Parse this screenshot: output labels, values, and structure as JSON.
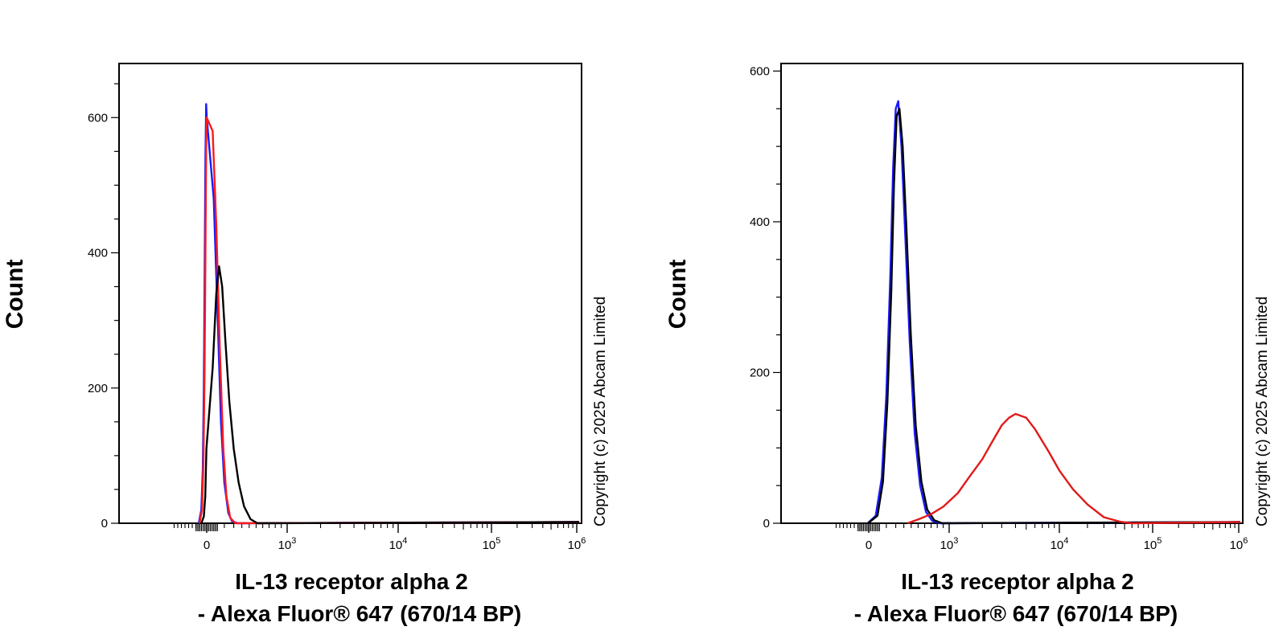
{
  "chart_data": [
    {
      "type": "histogram",
      "xlabel_line1": "IL-13 receptor alpha 2",
      "xlabel_line2": "- Alexa Fluor® 647 (670/14 BP)",
      "ylabel": "Count",
      "copyright": "Copyright (c) 2025 Abcam Limited",
      "x_scale": "biexponential",
      "x_tick_labels": [
        "0",
        "10",
        "10",
        "10",
        "10"
      ],
      "x_tick_exponents": [
        "",
        "3",
        "4",
        "5",
        "6"
      ],
      "x_ticks": [
        0,
        1000,
        10000,
        100000,
        1000000
      ],
      "ylim": [
        0,
        680
      ],
      "y_ticks": [
        0,
        200,
        400,
        600
      ],
      "series": [
        {
          "color": "#1a1aff",
          "x": [
            -220,
            -150,
            -110,
            -80,
            -55,
            -35,
            -15,
            0,
            20,
            45,
            70,
            100,
            140,
            180,
            250
          ],
          "values": [
            0,
            20,
            80,
            200,
            380,
            540,
            620,
            600,
            480,
            300,
            150,
            60,
            15,
            3,
            0
          ]
        },
        {
          "color": "#ff1a1a",
          "x": [
            -200,
            -130,
            -90,
            -60,
            -35,
            -15,
            0,
            15,
            35,
            60,
            90,
            120,
            160,
            220
          ],
          "values": [
            0,
            20,
            90,
            220,
            400,
            560,
            600,
            580,
            440,
            260,
            110,
            40,
            8,
            0
          ]
        },
        {
          "color": "#000000",
          "x": [
            -150,
            -80,
            -40,
            -10,
            15,
            35,
            55,
            80,
            110,
            150,
            200,
            260,
            330,
            420,
            520
          ],
          "values": [
            0,
            10,
            40,
            110,
            230,
            340,
            380,
            350,
            270,
            180,
            110,
            60,
            25,
            6,
            0
          ]
        }
      ]
    },
    {
      "type": "histogram",
      "xlabel_line1": "IL-13 receptor alpha 2",
      "xlabel_line2": "- Alexa Fluor® 647 (670/14 BP)",
      "ylabel": "Count",
      "copyright": "Copyright (c) 2025 Abcam Limited",
      "x_scale": "biexponential",
      "x_tick_labels": [
        "0",
        "10",
        "10",
        "10",
        "10"
      ],
      "x_tick_exponents": [
        "",
        "3",
        "4",
        "5",
        "6"
      ],
      "x_ticks": [
        0,
        1000,
        10000,
        100000,
        1000000
      ],
      "ylim": [
        0,
        610
      ],
      "y_ticks": [
        0,
        200,
        400,
        600
      ],
      "series": [
        {
          "color": "#1a1aff",
          "x": [
            -30,
            20,
            60,
            100,
            140,
            170,
            200,
            230,
            270,
            320,
            380,
            450,
            530,
            620,
            720,
            850
          ],
          "values": [
            0,
            10,
            60,
            170,
            330,
            470,
            550,
            560,
            500,
            380,
            240,
            120,
            50,
            15,
            3,
            0
          ]
        },
        {
          "color": "#000000",
          "x": [
            -20,
            30,
            70,
            110,
            150,
            180,
            210,
            245,
            285,
            335,
            395,
            465,
            550,
            640,
            750,
            880
          ],
          "values": [
            0,
            10,
            55,
            160,
            310,
            450,
            540,
            550,
            500,
            390,
            250,
            130,
            55,
            18,
            4,
            0
          ]
        },
        {
          "color": "#e01a1a",
          "x": [
            350,
            500,
            700,
            900,
            1200,
            1500,
            2000,
            2500,
            3000,
            3500,
            4000,
            5000,
            6000,
            8000,
            10000,
            14000,
            20000,
            30000,
            45000,
            60000
          ],
          "values": [
            0,
            5,
            12,
            22,
            40,
            60,
            85,
            110,
            130,
            140,
            145,
            140,
            125,
            95,
            70,
            45,
            25,
            8,
            2,
            0
          ]
        }
      ]
    }
  ]
}
